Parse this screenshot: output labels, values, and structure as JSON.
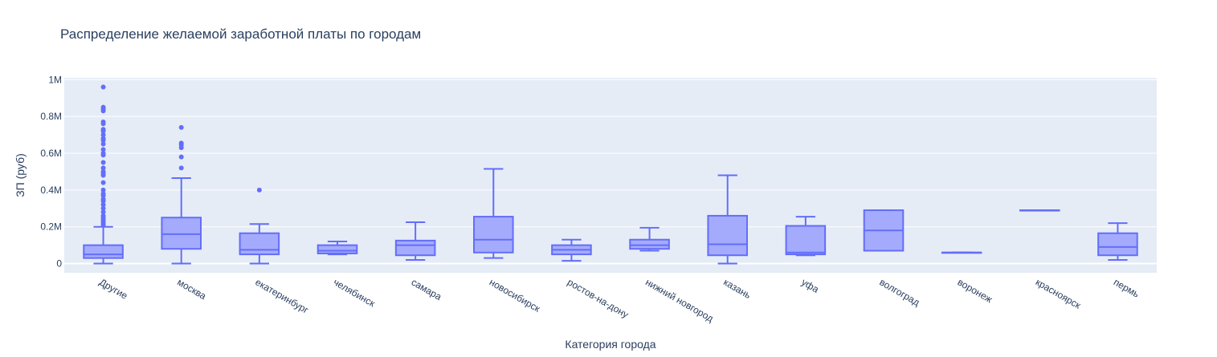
{
  "chart_data": {
    "type": "box",
    "title": "Распределение желаемой заработной платы по городам",
    "xlabel": "Категория города",
    "ylabel": "ЗП (руб)",
    "ylim": [
      -50000,
      1010000
    ],
    "yticks": [
      {
        "value": 0,
        "label": "0"
      },
      {
        "value": 200000,
        "label": "0.2M"
      },
      {
        "value": 400000,
        "label": "0.4M"
      },
      {
        "value": 600000,
        "label": "0.6M"
      },
      {
        "value": 800000,
        "label": "0.8M"
      },
      {
        "value": 1000000,
        "label": "1M"
      }
    ],
    "grid": true,
    "colors": {
      "box_line": "#636efa",
      "box_fill": "#a5abfc",
      "plot_bg": "#e5ecf6",
      "grid": "#ffffff",
      "text": "#2a3f5f"
    },
    "series": [
      {
        "category": "Другие",
        "min": 0,
        "q1": 30000,
        "median": 50000,
        "q3": 100000,
        "max": 200000,
        "outliers": [
          210000,
          220000,
          230000,
          240000,
          250000,
          260000,
          280000,
          300000,
          320000,
          340000,
          350000,
          370000,
          380000,
          400000,
          440000,
          480000,
          490000,
          500000,
          520000,
          550000,
          590000,
          600000,
          620000,
          650000,
          670000,
          680000,
          700000,
          720000,
          730000,
          760000,
          770000,
          830000,
          840000,
          850000,
          960000
        ]
      },
      {
        "category": "москва",
        "min": 0,
        "q1": 80000,
        "median": 160000,
        "q3": 250000,
        "max": 465000,
        "outliers": [
          520000,
          580000,
          630000,
          645000,
          655000,
          740000
        ]
      },
      {
        "category": "екатеринбург",
        "min": 0,
        "q1": 50000,
        "median": 75000,
        "q3": 165000,
        "max": 215000,
        "outliers": [
          400000
        ]
      },
      {
        "category": "челябинск",
        "min": 50000,
        "q1": 55000,
        "median": 70000,
        "q3": 100000,
        "max": 120000,
        "outliers": []
      },
      {
        "category": "самара",
        "min": 20000,
        "q1": 45000,
        "median": 100000,
        "q3": 125000,
        "max": 225000,
        "outliers": []
      },
      {
        "category": "новосибирск",
        "min": 30000,
        "q1": 60000,
        "median": 130000,
        "q3": 255000,
        "max": 515000,
        "outliers": []
      },
      {
        "category": "ростов-на-дону",
        "min": 15000,
        "q1": 50000,
        "median": 75000,
        "q3": 100000,
        "max": 130000,
        "outliers": []
      },
      {
        "category": "нижний новгород",
        "min": 70000,
        "q1": 80000,
        "median": 100000,
        "q3": 130000,
        "max": 195000,
        "outliers": []
      },
      {
        "category": "казань",
        "min": 0,
        "q1": 45000,
        "median": 105000,
        "q3": 260000,
        "max": 480000,
        "outliers": []
      },
      {
        "category": "уфа",
        "min": 45000,
        "q1": 50000,
        "median": 60000,
        "q3": 205000,
        "max": 255000,
        "outliers": []
      },
      {
        "category": "волгоград",
        "min": 70000,
        "q1": 70000,
        "median": 180000,
        "q3": 290000,
        "max": 290000,
        "outliers": []
      },
      {
        "category": "воронеж",
        "min": 60000,
        "q1": 60000,
        "median": 60000,
        "q3": 60000,
        "max": 60000,
        "outliers": []
      },
      {
        "category": "красноярск",
        "min": 290000,
        "q1": 290000,
        "median": 290000,
        "q3": 290000,
        "max": 290000,
        "outliers": []
      },
      {
        "category": "пермь",
        "min": 20000,
        "q1": 45000,
        "median": 90000,
        "q3": 165000,
        "max": 220000,
        "outliers": []
      }
    ]
  }
}
